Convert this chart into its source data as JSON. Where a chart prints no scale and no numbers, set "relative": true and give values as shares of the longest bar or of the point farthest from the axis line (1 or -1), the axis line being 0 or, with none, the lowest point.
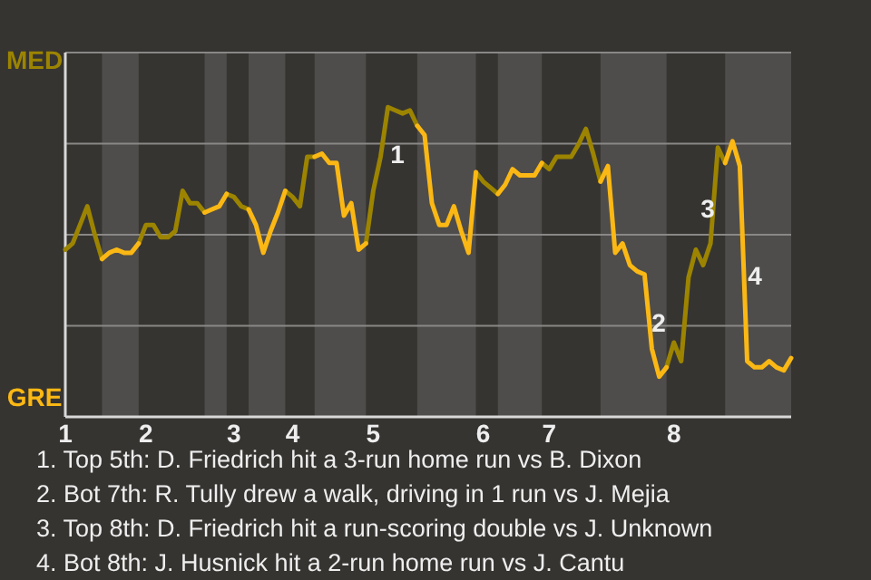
{
  "chart_data": {
    "type": "line",
    "relative": true,
    "categories": [
      "1",
      null,
      null,
      null,
      null,
      null,
      null,
      null,
      null,
      null,
      null,
      "2",
      null,
      null,
      null,
      null,
      null,
      null,
      null,
      null,
      null,
      null,
      null,
      "3",
      null,
      null,
      null,
      null,
      null,
      null,
      null,
      "4",
      null,
      null,
      null,
      null,
      null,
      null,
      null,
      null,
      null,
      null,
      "5",
      null,
      null,
      null,
      null,
      null,
      null,
      null,
      null,
      null,
      null,
      null,
      null,
      null,
      null,
      "6",
      null,
      null,
      null,
      null,
      null,
      null,
      null,
      null,
      "7",
      null,
      null,
      null,
      null,
      null,
      null,
      null,
      null,
      null,
      null,
      null,
      null,
      null,
      null,
      null,
      null,
      "8",
      null,
      null,
      null,
      null,
      null,
      null,
      null,
      null,
      null,
      null,
      null,
      null,
      null,
      null,
      null,
      null
    ],
    "series": [
      {
        "color": "#9c8400",
        "values": [
          0.54,
          0.56,
          0.62,
          0.68,
          0.59,
          0.51,
          null,
          null,
          null,
          null,
          0.56,
          0.62,
          0.62,
          0.58,
          0.58,
          0.6,
          0.73,
          0.69,
          0.69,
          0.66,
          null,
          null,
          0.72,
          0.71,
          0.68,
          0.67,
          null,
          null,
          null,
          null,
          0.73,
          0.71,
          0.68,
          0.84,
          0.84,
          null,
          null,
          null,
          null,
          null,
          null,
          0.56,
          0.73,
          0.84,
          1,
          0.99,
          0.98,
          0.99,
          0.94,
          null,
          null,
          null,
          null,
          null,
          null,
          null,
          0.79,
          0.76,
          0.74,
          0.72,
          null,
          null,
          null,
          null,
          null,
          0.82,
          0.8,
          0.84,
          0.84,
          0.84,
          0.88,
          0.93,
          0.85,
          0.76,
          null,
          null,
          null,
          null,
          null,
          null,
          null,
          null,
          0.16,
          0.24,
          0.18,
          0.45,
          0.54,
          0.49,
          0.56,
          0.87,
          0.82,
          null,
          null,
          null,
          null,
          null,
          null,
          null,
          null,
          null
        ]
      },
      {
        "color": "#fbb814",
        "values": [
          null,
          null,
          null,
          null,
          null,
          0.51,
          0.53,
          0.54,
          0.53,
          0.53,
          0.56,
          null,
          null,
          null,
          null,
          null,
          null,
          null,
          null,
          0.66,
          0.67,
          0.68,
          0.72,
          null,
          null,
          0.67,
          0.62,
          0.53,
          0.6,
          0.66,
          0.73,
          null,
          null,
          null,
          0.84,
          0.85,
          0.82,
          0.82,
          0.65,
          0.69,
          0.54,
          0.56,
          null,
          null,
          null,
          null,
          null,
          null,
          0.94,
          0.91,
          0.69,
          0.62,
          0.62,
          0.68,
          0.6,
          0.53,
          0.79,
          null,
          null,
          0.72,
          0.75,
          0.8,
          0.78,
          0.78,
          0.78,
          0.82,
          null,
          null,
          null,
          null,
          null,
          null,
          null,
          0.76,
          0.81,
          0.53,
          0.56,
          0.49,
          0.47,
          0.46,
          0.22,
          0.13,
          0.16,
          null,
          null,
          null,
          null,
          null,
          null,
          null,
          0.82,
          0.89,
          0.81,
          0.18,
          0.16,
          0.16,
          0.18,
          0.16,
          0.15,
          0.19
        ]
      }
    ],
    "grid": "y",
    "annotations": [
      "MED",
      "GRE",
      "1",
      "2",
      "3",
      "4",
      "1. Top 5th: D. Friedrich hit a 3-run home run vs B. Dixon",
      "2. Bot 7th: R. Tully drew a walk, driving in 1 run vs J. Mejia",
      "3. Top 8th: D. Friedrich hit a run-scoring double vs J. Unknown",
      "4. Bot 8th: J. Husnick hit a 2-run home run vs J. Cantu"
    ]
  }
}
